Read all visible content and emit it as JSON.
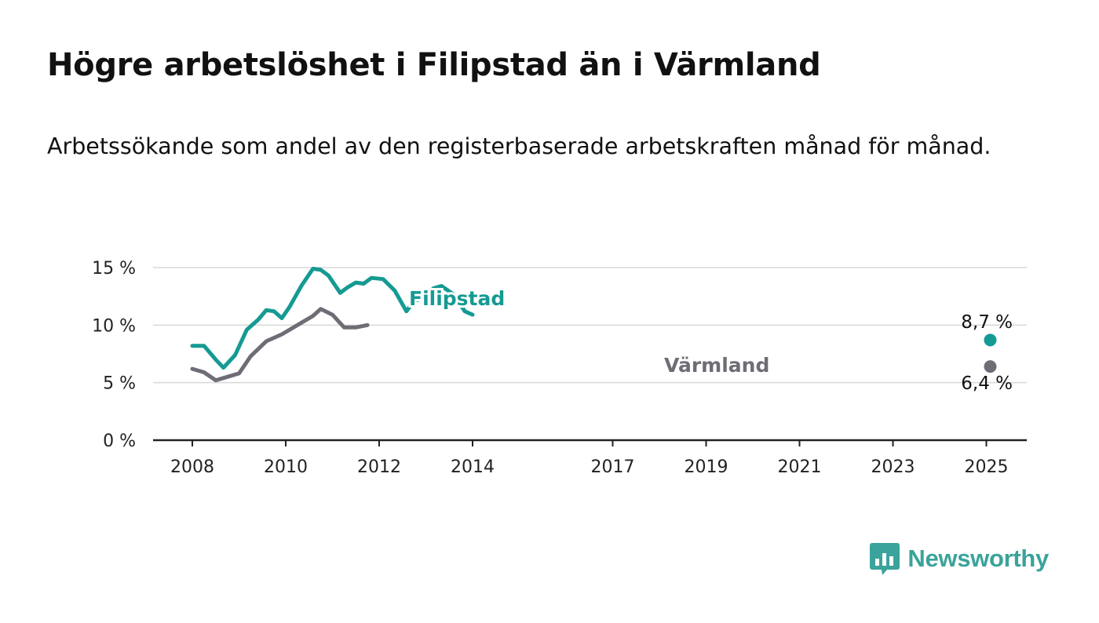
{
  "title": "Högre arbetslöshet i Filipstad än i Värmland",
  "subtitle": "Arbetssökande som andel av den registerbaserade arbetskraften månad för månad.",
  "logo": {
    "text": "Newsworthy",
    "icon": "newsworthy-bar-chart-icon",
    "color": "#3aa39b"
  },
  "chart_data": {
    "type": "line",
    "title": "Högre arbetslöshet i Filipstad än i Värmland",
    "subtitle": "Arbetssökande som andel av den registerbaserade arbetskraften månad för månad.",
    "xlabel": "",
    "ylabel": "",
    "x_ticks": [
      "2008",
      "2010",
      "2012",
      "2014",
      "2017",
      "2019",
      "2021",
      "2023",
      "2025"
    ],
    "y_ticks": [
      "0 %",
      "5 %",
      "10 %",
      "15 %"
    ],
    "ylim": [
      0,
      16.5
    ],
    "xlim": [
      "2008-01",
      "2025-02"
    ],
    "grid": true,
    "legend": "inline labels",
    "series": [
      {
        "name": "Filipstad",
        "color": "#159a93",
        "end_label": "8,7 %",
        "points": [
          [
            "2008-01",
            8.2
          ],
          [
            "2008-04",
            8.2
          ],
          [
            "2008-07",
            7.0
          ],
          [
            "2008-09",
            6.3
          ],
          [
            "2008-12",
            7.4
          ],
          [
            "2009-03",
            9.6
          ],
          [
            "2009-06",
            10.5
          ],
          [
            "2009-08",
            11.3
          ],
          [
            "2009-10",
            11.2
          ],
          [
            "2009-12",
            10.6
          ],
          [
            "2010-02",
            11.6
          ],
          [
            "2010-05",
            13.4
          ],
          [
            "2010-08",
            14.9
          ],
          [
            "2010-10",
            14.8
          ],
          [
            "2010-12",
            14.3
          ],
          [
            "2011-03",
            12.8
          ],
          [
            "2011-05",
            13.3
          ],
          [
            "2011-07",
            13.7
          ],
          [
            "2011-09",
            13.6
          ],
          [
            "2011-11",
            14.1
          ],
          [
            "2012-02",
            14.0
          ],
          [
            "2012-05",
            13.0
          ],
          [
            "2012-08",
            11.2
          ],
          [
            "2012-10",
            12.1
          ],
          [
            "2012-12",
            12.3
          ],
          [
            "2013-03",
            13.2
          ],
          [
            "2013-05",
            13.4
          ],
          [
            "2013-08",
            12.7
          ],
          [
            "2013-11",
            11.2
          ],
          [
            "2014-01",
            10.9
          ]
        ]
      },
      {
        "name": "Värmland",
        "color": "#6f6c76",
        "end_label": "6,4 %",
        "points": [
          [
            "2008-01",
            6.2
          ],
          [
            "2008-04",
            5.9
          ],
          [
            "2008-07",
            5.2
          ],
          [
            "2008-10",
            5.5
          ],
          [
            "2009-01",
            5.8
          ],
          [
            "2009-04",
            7.3
          ],
          [
            "2009-08",
            8.6
          ],
          [
            "2009-12",
            9.2
          ],
          [
            "2010-04",
            10.0
          ],
          [
            "2010-08",
            10.8
          ],
          [
            "2010-10",
            11.4
          ],
          [
            "2011-01",
            10.9
          ],
          [
            "2011-04",
            9.8
          ],
          [
            "2011-07",
            9.8
          ],
          [
            "2011-10",
            10.0
          ]
        ]
      }
    ]
  }
}
